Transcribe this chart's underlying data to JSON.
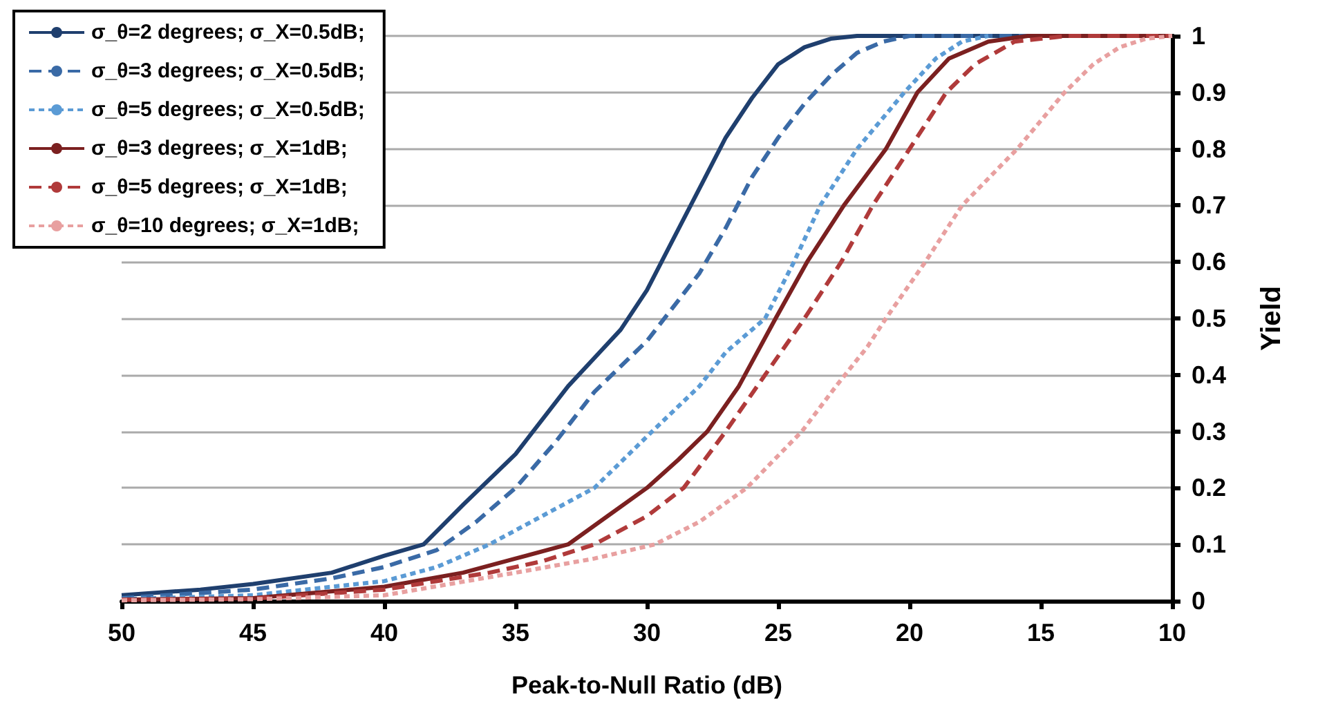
{
  "chart_data": {
    "type": "line",
    "xlabel": "Peak-to-Null Ratio (dB)",
    "ylabel": "Yield",
    "xlim": [
      50,
      10
    ],
    "xticks": [
      50,
      45,
      40,
      35,
      30,
      25,
      20,
      15,
      10
    ],
    "ylim": [
      0,
      1
    ],
    "yticks": [
      0,
      0.1,
      0.2,
      0.3,
      0.4,
      0.5,
      0.6,
      0.7,
      0.8,
      0.9,
      1
    ],
    "grid": "y",
    "legend": "top left",
    "marker": "none",
    "series": [
      {
        "name": "σ_θ=2 degrees; σ_X=0.5dB;",
        "color": "#1f3f6e",
        "line_style": "solid",
        "x": [
          50,
          47,
          45,
          42,
          40,
          38.5,
          37,
          35,
          33,
          31,
          30,
          29,
          28,
          27,
          26,
          25,
          24,
          23,
          22,
          10
        ],
        "values": [
          0.01,
          0.02,
          0.03,
          0.05,
          0.08,
          0.1,
          0.17,
          0.26,
          0.38,
          0.48,
          0.55,
          0.64,
          0.73,
          0.82,
          0.89,
          0.95,
          0.98,
          0.995,
          1,
          1
        ]
      },
      {
        "name": "σ_θ=3 degrees; σ_X=0.5dB;",
        "color": "#3a6aa6",
        "line_style": "dashed",
        "x": [
          50,
          45,
          42,
          40,
          38,
          36.5,
          35,
          33.5,
          32,
          30,
          29,
          28,
          27,
          26,
          25,
          24,
          23,
          22,
          21,
          20,
          10
        ],
        "values": [
          0.005,
          0.02,
          0.04,
          0.06,
          0.09,
          0.14,
          0.2,
          0.28,
          0.37,
          0.46,
          0.52,
          0.58,
          0.66,
          0.75,
          0.82,
          0.88,
          0.93,
          0.97,
          0.99,
          1,
          1
        ]
      },
      {
        "name": "σ_θ=5 degrees; σ_X=0.5dB;",
        "color": "#5b9bd5",
        "line_style": "dotted",
        "x": [
          50,
          45,
          40,
          38,
          36,
          34,
          32,
          29.8,
          28,
          27,
          25.5,
          24.4,
          23.4,
          22,
          20.2,
          19,
          18,
          17
        ],
        "values": [
          0.003,
          0.01,
          0.035,
          0.06,
          0.1,
          0.15,
          0.2,
          0.3,
          0.38,
          0.44,
          0.5,
          0.6,
          0.7,
          0.8,
          0.9,
          0.96,
          0.99,
          1
        ]
      },
      {
        "name": "σ_θ=3 degrees; σ_X=1dB;",
        "color": "#7b2020",
        "line_style": "solid",
        "x": [
          50,
          45,
          40,
          37,
          35,
          33,
          31.5,
          30,
          28.8,
          27.7,
          26.5,
          25.1,
          23.9,
          22.5,
          20.9,
          19.7,
          18.5,
          17,
          15.5,
          10
        ],
        "values": [
          0.002,
          0.005,
          0.025,
          0.05,
          0.075,
          0.1,
          0.15,
          0.2,
          0.25,
          0.3,
          0.38,
          0.5,
          0.6,
          0.7,
          0.8,
          0.9,
          0.96,
          0.99,
          1,
          1
        ]
      },
      {
        "name": "σ_θ=5 degrees; σ_X=1dB;",
        "color": "#b03a3a",
        "line_style": "dashed",
        "x": [
          50,
          45,
          40,
          36,
          34,
          32,
          30,
          28.6,
          27,
          25.5,
          24,
          22.6,
          21.4,
          20,
          18.6,
          17.5,
          16,
          14,
          10
        ],
        "values": [
          0.002,
          0.004,
          0.02,
          0.05,
          0.07,
          0.1,
          0.15,
          0.2,
          0.3,
          0.4,
          0.5,
          0.6,
          0.7,
          0.8,
          0.9,
          0.95,
          0.99,
          1,
          1
        ]
      },
      {
        "name": "σ_θ=10 degrees; σ_X=1dB;",
        "color": "#e8a0a0",
        "line_style": "dotted",
        "x": [
          50,
          45,
          40,
          35,
          32,
          29.7,
          28,
          26.2,
          24.1,
          22.8,
          21.6,
          20.9,
          19.4,
          18,
          15.9,
          14.1,
          13,
          12,
          11,
          10
        ],
        "values": [
          0.001,
          0.003,
          0.01,
          0.05,
          0.075,
          0.1,
          0.14,
          0.2,
          0.3,
          0.38,
          0.45,
          0.5,
          0.6,
          0.7,
          0.8,
          0.9,
          0.95,
          0.98,
          0.995,
          1
        ]
      }
    ]
  }
}
